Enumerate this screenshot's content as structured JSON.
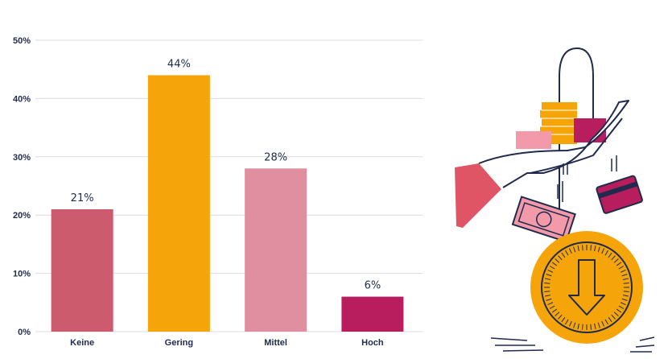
{
  "chart_data": {
    "type": "bar",
    "categories": [
      "Keine",
      "Gering",
      "Mittel",
      "Hoch"
    ],
    "values": [
      21,
      44,
      28,
      6
    ],
    "value_labels": [
      "21%",
      "44%",
      "28%",
      "6%"
    ],
    "bar_colors": [
      "#cc5b6e",
      "#f5a50a",
      "#e08fa0",
      "#b81d5e"
    ],
    "ylim": [
      0,
      50
    ],
    "yticks": [
      0,
      10,
      20,
      30,
      40,
      50
    ],
    "ytick_labels": [
      "0%",
      "10%",
      "20%",
      "30%",
      "40%",
      "50%"
    ],
    "grid": true,
    "title": "",
    "xlabel": "",
    "ylabel": ""
  },
  "colors": {
    "text": "#1f2a4d",
    "grid": "#d9dce3",
    "coin": "#f5a50a",
    "coin_outline": "#1f2a4d",
    "pink": "#f29aaa",
    "magenta": "#b81d5e",
    "red": "#e05566"
  },
  "illustration": {
    "icon": "hand-dropping-money-into-coin-illustration"
  }
}
